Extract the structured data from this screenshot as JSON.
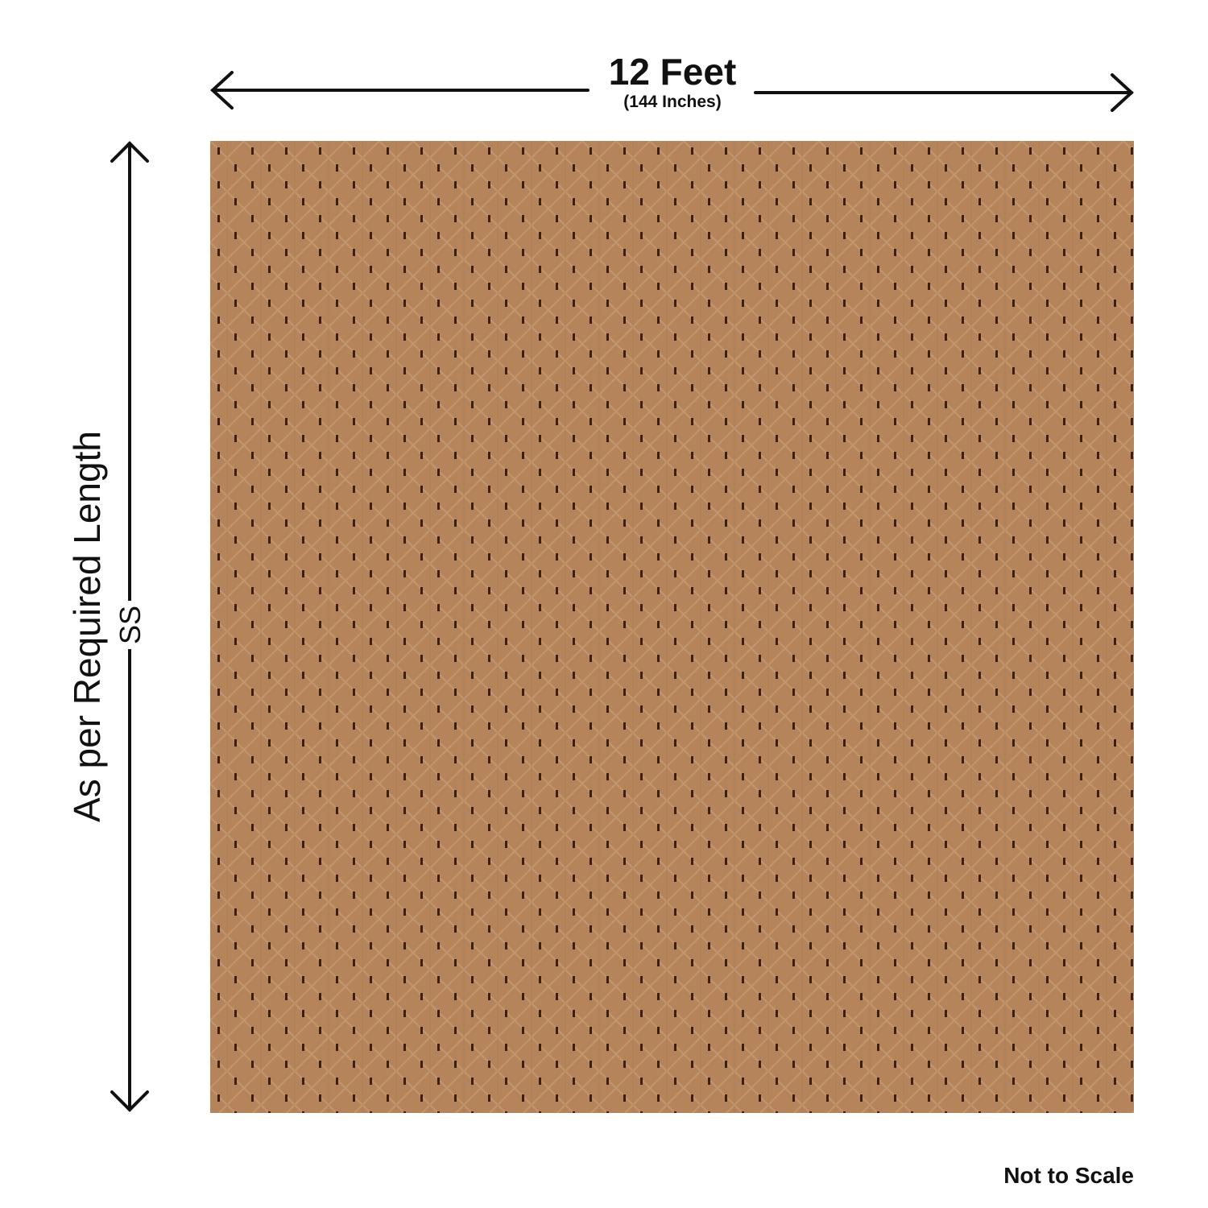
{
  "width_label": "12 Feet",
  "width_sublabel": "(144 Inches)",
  "length_label": "As per Required Length",
  "code_label": "SS",
  "note": "Not to Scale",
  "colors": {
    "carpet": "#b5845a",
    "motif": "#3a1f16",
    "lines": "#111111"
  }
}
